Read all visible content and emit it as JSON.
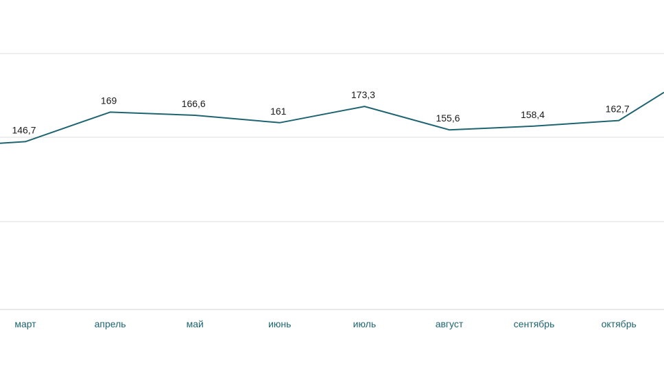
{
  "colors": {
    "line": "#1d6470",
    "grid": "#dcdcdc",
    "label": "#1a1a1a",
    "tick": "#1d6470"
  },
  "chart_data": {
    "type": "line",
    "title": "",
    "xlabel": "",
    "ylabel": "",
    "grid": true,
    "legend": "none",
    "categories": [
      "март",
      "апрель",
      "май",
      "июнь",
      "июль",
      "август",
      "сентябрь",
      "октябрь"
    ],
    "series": [
      {
        "values": [
          146.7,
          169,
          166.6,
          161,
          173.3,
          155.6,
          158.4,
          162.7
        ],
        "labels": [
          "146,7",
          "169",
          "166,6",
          "161",
          "173,3",
          "155,6",
          "158,4",
          "162,7"
        ]
      }
    ],
    "left_edge_value": 145.5,
    "right_edge_value": 184
  }
}
